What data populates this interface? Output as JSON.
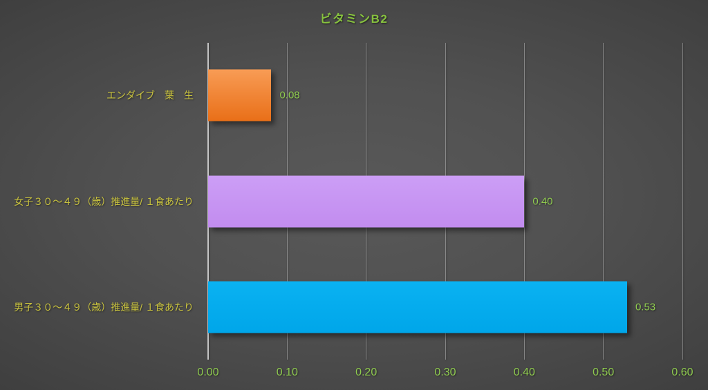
{
  "title": "ビタミンB2",
  "colors": {
    "background_center": "#595959",
    "background_edge": "#242424",
    "title_green": "#87c23f",
    "category_label_yellow": "#c9c33e",
    "value_label_green": "#8fcb4f",
    "gridline_gray": "#d6d6d6",
    "bar_orange": "#ee7a23",
    "bar_purple": "#c897f3",
    "bar_blue": "#00adef"
  },
  "chart_data": {
    "type": "bar",
    "orientation": "horizontal",
    "title": "ビタミンB2",
    "categories": [
      "エンダイブ　葉　生",
      "女子３０〜４９（歳）推進量/ １食あたり",
      "男子３０〜４９（歳）推進量/ １食あたり"
    ],
    "values": [
      0.08,
      0.4,
      0.53
    ],
    "value_labels": [
      "0.08",
      "0.40",
      "0.53"
    ],
    "bar_colors": [
      {
        "top": "#f89c55",
        "bottom": "#e96f18"
      },
      {
        "top": "#cc9ef6",
        "bottom": "#c28cef"
      },
      {
        "top": "#0ab2f2",
        "bottom": "#00a6e9"
      }
    ],
    "xlabel": "",
    "ylabel": "",
    "xlim": [
      0,
      0.6
    ],
    "xticks": [
      {
        "value": 0.0,
        "label": "0.00"
      },
      {
        "value": 0.1,
        "label": "0.10"
      },
      {
        "value": 0.2,
        "label": "0.20"
      },
      {
        "value": 0.3,
        "label": "0.30"
      },
      {
        "value": 0.4,
        "label": "0.40"
      },
      {
        "value": 0.5,
        "label": "0.50"
      },
      {
        "value": 0.6,
        "label": "0.60"
      }
    ],
    "grid": true,
    "legend": false
  }
}
